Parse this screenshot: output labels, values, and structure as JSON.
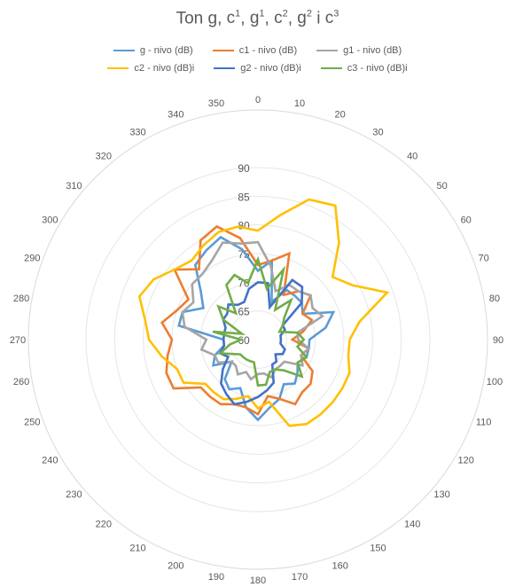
{
  "chart_data": {
    "type": "radar",
    "title_text": "Ton",
    "title_notes": [
      {
        "base": "g",
        "sup": ""
      },
      {
        "base": "c",
        "sup": "1"
      },
      {
        "base": "g",
        "sup": "1"
      },
      {
        "base": "c",
        "sup": "2"
      },
      {
        "base": "g",
        "sup": "2"
      },
      {
        "base": "i",
        "sup": ""
      },
      {
        "base": "c",
        "sup": "3"
      }
    ],
    "angle_labels": [
      "0",
      "10",
      "20",
      "30",
      "40",
      "50",
      "60",
      "70",
      "80",
      "90",
      "100",
      "110",
      "120",
      "130",
      "140",
      "150",
      "160",
      "170",
      "180",
      "190",
      "200",
      "210",
      "220",
      "230",
      "240",
      "250",
      "260",
      "270",
      "280",
      "290",
      "300",
      "310",
      "320",
      "330",
      "340",
      "350"
    ],
    "r_ticks": [
      "60",
      "65",
      "70",
      "75",
      "80",
      "85",
      "90"
    ],
    "rlim": [
      60,
      90
    ],
    "grid": true,
    "legend_position": "top",
    "series": [
      {
        "name": "g - nivo (dB)",
        "color": "#5b9bd5",
        "values": [
          72,
          74,
          67,
          70,
          70,
          70,
          69,
          74,
          72,
          69,
          69,
          69,
          68,
          69,
          70,
          69,
          71,
          72,
          74,
          72,
          69,
          70,
          69,
          66,
          69,
          68,
          66,
          66,
          74,
          74,
          71,
          73,
          77,
          78,
          79,
          76
        ]
      },
      {
        "name": "c1 - nivo (dB)",
        "color": "#ed7d31",
        "values": [
          73,
          74,
          76,
          69,
          71,
          72,
          69,
          70,
          68,
          66,
          69,
          68,
          71,
          72,
          72,
          73,
          71,
          70,
          73,
          72,
          72,
          73,
          73,
          73,
          77,
          77,
          76,
          75,
          77,
          75,
          74,
          79,
          76,
          80,
          81,
          78
        ]
      },
      {
        "name": "g1 - nivo (dB)",
        "color": "#a5a5a5",
        "values": [
          77,
          73,
          69,
          71,
          71,
          72,
          71,
          72,
          67,
          67,
          69,
          68,
          69,
          66,
          66,
          66,
          67,
          66,
          66,
          67,
          66,
          67,
          66,
          66,
          68,
          68,
          70,
          69,
          73,
          74,
          73,
          75,
          75,
          76,
          78,
          77
        ]
      },
      {
        "name": "c2 - nivo (dB)i",
        "color": "#ffc000",
        "values": [
          79,
          82,
          86,
          87,
          82,
          77,
          79,
          84,
          78,
          76,
          76,
          77,
          77,
          77,
          77,
          77,
          76,
          71,
          72,
          70,
          71,
          72,
          72,
          72,
          75,
          75,
          77,
          79,
          80,
          82,
          81,
          79,
          78,
          79,
          80,
          80
        ]
      },
      {
        "name": "g2 - nivo (dB)i",
        "color": "#4472c4",
        "values": [
          70,
          70,
          66,
          72,
          72,
          70,
          65,
          65,
          64,
          64,
          64,
          65,
          65,
          64,
          65,
          65,
          68,
          69,
          70,
          71,
          72,
          71,
          70,
          68,
          66,
          67,
          66,
          66,
          66,
          66,
          67,
          67,
          68,
          67,
          67,
          69
        ]
      },
      {
        "name": "c3 - nivo (dB)i",
        "color": "#70ad47",
        "values": [
          74,
          69,
          73,
          66,
          69,
          66,
          65,
          64,
          67,
          68,
          67,
          69,
          68,
          70,
          67,
          66,
          66,
          68,
          68,
          64,
          64,
          64,
          64,
          64,
          65,
          67,
          65,
          63,
          68,
          63,
          67,
          69,
          66,
          71,
          72,
          70
        ]
      }
    ]
  }
}
